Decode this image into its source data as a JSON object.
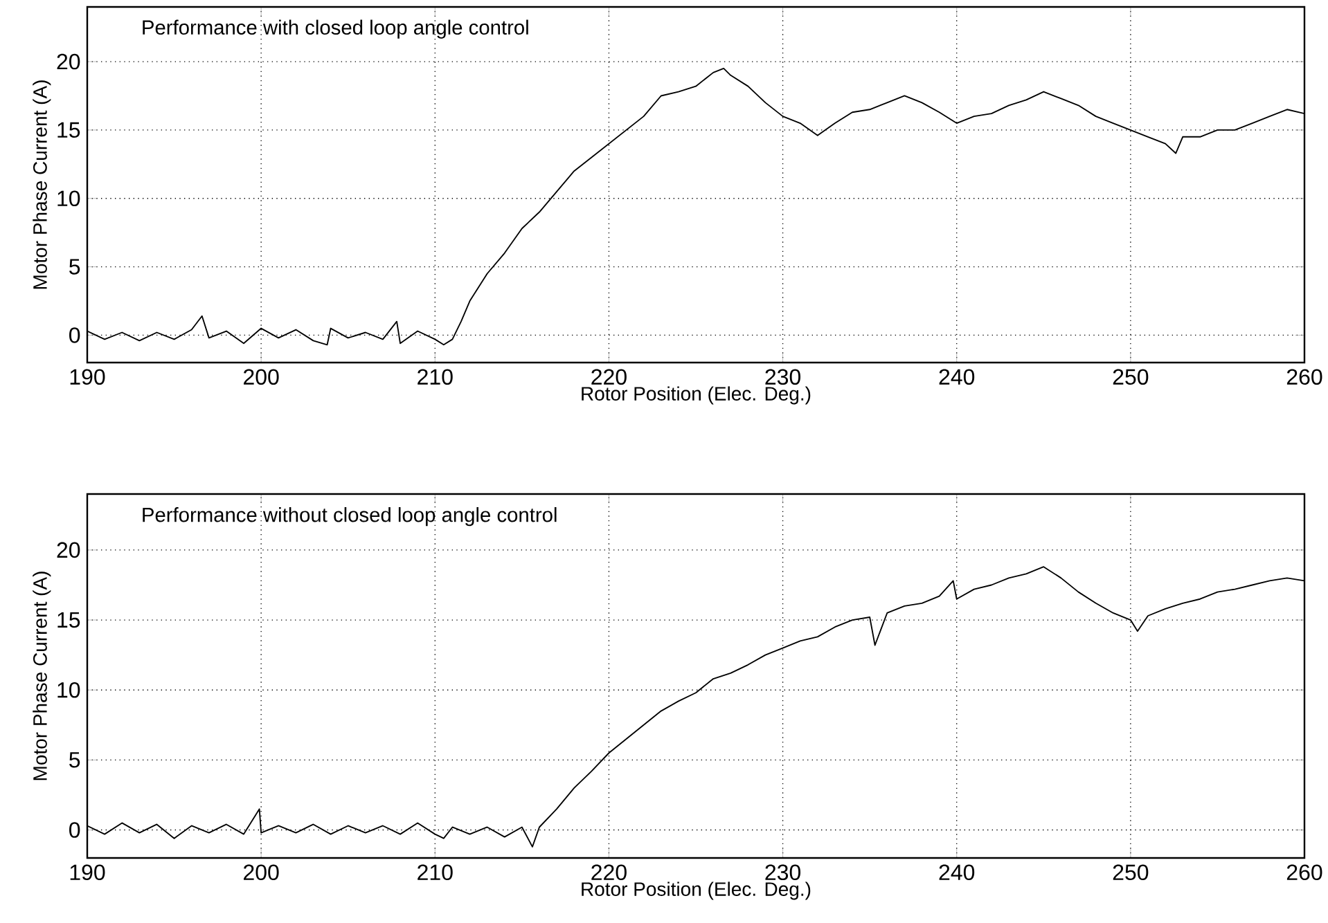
{
  "chart_data": [
    {
      "type": "line",
      "title": "Performance with closed loop  angle control",
      "xlabel": "Rotor Position   (Elec. Deg.)",
      "ylabel": "Motor Phase Current (A)",
      "color": "#000000",
      "grid": true,
      "xlim": [
        190,
        260
      ],
      "ylim": [
        -2,
        24
      ],
      "xticks": [
        190,
        200,
        210,
        220,
        230,
        240,
        250,
        260
      ],
      "yticks": [
        0,
        5,
        10,
        15,
        20
      ],
      "x": [
        190,
        191,
        192,
        193,
        194,
        195,
        196,
        196.6,
        197,
        198,
        199,
        200,
        201,
        202,
        203,
        203.8,
        204,
        205,
        206,
        207,
        207.8,
        208,
        209,
        210,
        210.5,
        211,
        211.5,
        212,
        213,
        214,
        215,
        216,
        217,
        218,
        219,
        220,
        221,
        222,
        223,
        224,
        225,
        226,
        226.6,
        227,
        228,
        229,
        230,
        231,
        232,
        233,
        234,
        235,
        236,
        237,
        238,
        239,
        240,
        241,
        242,
        243,
        244,
        245,
        246,
        247,
        248,
        249,
        250,
        251,
        252,
        252.6,
        253,
        254,
        255,
        256,
        257,
        258,
        259,
        260
      ],
      "values": [
        0.3,
        -0.3,
        0.2,
        -0.4,
        0.2,
        -0.3,
        0.4,
        1.4,
        -0.2,
        0.3,
        -0.6,
        0.5,
        -0.2,
        0.4,
        -0.4,
        -0.7,
        0.5,
        -0.2,
        0.2,
        -0.3,
        1.0,
        -0.6,
        0.3,
        -0.3,
        -0.7,
        -0.3,
        1.0,
        2.5,
        4.5,
        6.0,
        7.8,
        9.0,
        10.5,
        12.0,
        13.0,
        14.0,
        15.0,
        16.0,
        17.5,
        17.8,
        18.2,
        19.2,
        19.5,
        19.0,
        18.2,
        17.0,
        16.0,
        15.5,
        14.6,
        15.5,
        16.3,
        16.5,
        17.0,
        17.5,
        17.0,
        16.3,
        15.5,
        16.0,
        16.2,
        16.8,
        17.2,
        17.8,
        17.3,
        16.8,
        16.0,
        15.5,
        15.0,
        14.5,
        14.0,
        13.3,
        14.5,
        14.5,
        15.0,
        15.0,
        15.5,
        16.0,
        16.5,
        16.2
      ]
    },
    {
      "type": "line",
      "title": "Performance without closed loop  angle control",
      "xlabel": "Rotor Position   (Elec. Deg.)",
      "ylabel": "Motor Phase Current (A)",
      "color": "#000000",
      "grid": true,
      "xlim": [
        190,
        260
      ],
      "ylim": [
        -2,
        24
      ],
      "xticks": [
        190,
        200,
        210,
        220,
        230,
        240,
        250,
        260
      ],
      "yticks": [
        0,
        5,
        10,
        15,
        20
      ],
      "x": [
        190,
        191,
        192,
        193,
        194,
        195,
        196,
        197,
        198,
        199,
        199.9,
        200,
        201,
        202,
        203,
        204,
        205,
        206,
        207,
        208,
        209,
        210,
        210.5,
        211,
        212,
        213,
        214,
        215,
        215.6,
        216,
        217,
        218,
        219,
        220,
        221,
        222,
        223,
        224,
        225,
        226,
        227,
        228,
        229,
        230,
        231,
        232,
        233,
        234,
        235,
        235.3,
        236,
        237,
        238,
        239,
        239.8,
        240,
        241,
        242,
        243,
        244,
        245,
        246,
        247,
        248,
        249,
        250,
        250.4,
        251,
        252,
        253,
        254,
        255,
        256,
        257,
        258,
        259,
        260
      ],
      "values": [
        0.3,
        -0.3,
        0.5,
        -0.2,
        0.4,
        -0.6,
        0.3,
        -0.2,
        0.4,
        -0.3,
        1.5,
        -0.2,
        0.3,
        -0.2,
        0.4,
        -0.3,
        0.3,
        -0.2,
        0.3,
        -0.3,
        0.5,
        -0.3,
        -0.6,
        0.2,
        -0.3,
        0.2,
        -0.5,
        0.2,
        -1.2,
        0.2,
        1.5,
        3.0,
        4.2,
        5.5,
        6.5,
        7.5,
        8.5,
        9.2,
        9.8,
        10.8,
        11.2,
        11.8,
        12.5,
        13.0,
        13.5,
        13.8,
        14.5,
        15.0,
        15.2,
        13.2,
        15.5,
        16.0,
        16.2,
        16.7,
        17.8,
        16.5,
        17.2,
        17.5,
        18.0,
        18.3,
        18.8,
        18.0,
        17.0,
        16.2,
        15.5,
        15.0,
        14.2,
        15.3,
        15.8,
        16.2,
        16.5,
        17.0,
        17.2,
        17.5,
        17.8,
        18.0,
        17.8
      ]
    }
  ]
}
